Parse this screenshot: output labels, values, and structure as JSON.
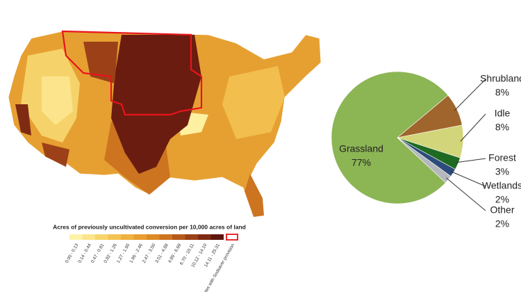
{
  "map": {
    "legend_title": "Acres of previously uncultivated conversion per 10,000 acres of land",
    "bins": [
      {
        "label": "0.00 - 0.13",
        "color": "#fdf3a8"
      },
      {
        "label": "0.14 - 0.44",
        "color": "#fbe58a"
      },
      {
        "label": "0.47 - 0.81",
        "color": "#f8d56c"
      },
      {
        "label": "0.82 - 1.26",
        "color": "#f4c352"
      },
      {
        "label": "1.27 - 1.95",
        "color": "#efb13f"
      },
      {
        "label": "1.96 - 2.46",
        "color": "#e89e31"
      },
      {
        "label": "2.47 - 3.50",
        "color": "#dd8a27"
      },
      {
        "label": "3.51 - 4.88",
        "color": "#cd7420"
      },
      {
        "label": "4.89 - 6.69",
        "color": "#b65a1b"
      },
      {
        "label": "6.70 - 10.11",
        "color": "#9c4117"
      },
      {
        "label": "10.12 - 14.10",
        "color": "#7f2a12"
      },
      {
        "label": "14.11 - 25.31",
        "color": "#5e170d"
      }
    ],
    "sodsaver_label": "States with Sodsaver provision",
    "sodsaver_color": "#e8141c"
  },
  "chart_data": {
    "type": "pie",
    "categories": [
      "Grassland",
      "Shrubland",
      "Idle",
      "Forest",
      "Wetlands",
      "Other"
    ],
    "values": [
      77,
      8,
      8,
      3,
      2,
      2
    ],
    "value_labels": [
      "77%",
      "8%",
      "8%",
      "3%",
      "2%",
      "2%"
    ],
    "colors": [
      "#8cb554",
      "#a0652c",
      "#d3d57a",
      "#1f6a22",
      "#2c4c7c",
      "#b4b8bc"
    ]
  }
}
